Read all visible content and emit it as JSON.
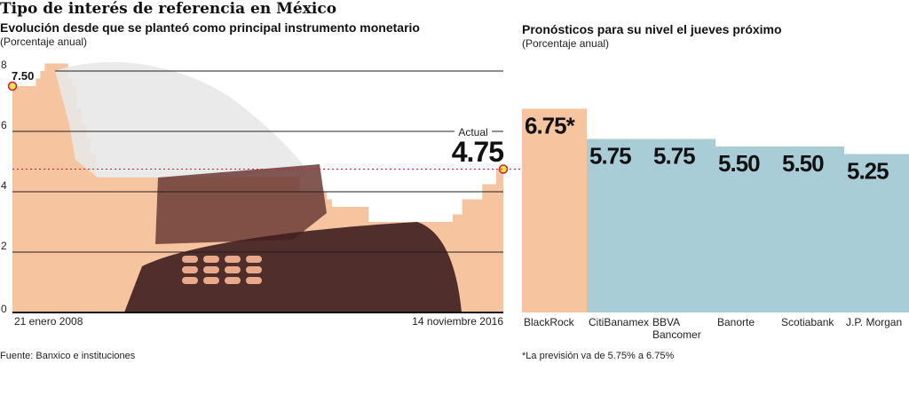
{
  "header": {
    "title": "Tipo de interés de referencia en México",
    "left_subtitle": "Evolución desde que se planteó como principal instrumento monetario",
    "left_unit": "(Porcentaje anual)",
    "right_subtitle": "Pronósticos para su nivel el jueves próximo",
    "right_unit": "(Porcentaje anual)"
  },
  "footer": {
    "source": "Fuente: Banxico e instituciones",
    "note": "*La previsión va de 5.75% a 6.75%"
  },
  "colors": {
    "history_fill": "#f7c4a0",
    "forecast_fill": "#a9cdd6",
    "blackrock_fill": "#f7c4a0",
    "reference_line": "#c8203c",
    "marker": "#f2e04a"
  },
  "chart_data": [
    {
      "type": "area",
      "title": "Evolución desde que se planteó como principal instrumento monetario",
      "ylabel": "Porcentaje anual",
      "ylim": [
        0,
        8
      ],
      "yticks": [
        "0",
        "2",
        "4",
        "6",
        "8"
      ],
      "xlabels": {
        "start": "21 enero 2008",
        "end": "14 noviembre 2016"
      },
      "xlim": [
        2008.05,
        2016.87
      ],
      "step_series": [
        [
          2008.05,
          7.5
        ],
        [
          2008.47,
          7.75
        ],
        [
          2008.55,
          8.0
        ],
        [
          2008.63,
          8.25
        ],
        [
          2009.05,
          7.75
        ],
        [
          2009.13,
          7.5
        ],
        [
          2009.21,
          6.75
        ],
        [
          2009.3,
          6.25
        ],
        [
          2009.38,
          5.75
        ],
        [
          2009.46,
          5.25
        ],
        [
          2009.55,
          4.5
        ],
        [
          2013.21,
          4.0
        ],
        [
          2013.7,
          3.75
        ],
        [
          2013.79,
          3.5
        ],
        [
          2014.45,
          3.0
        ],
        [
          2015.96,
          3.25
        ],
        [
          2016.13,
          3.75
        ],
        [
          2016.49,
          4.25
        ],
        [
          2016.74,
          4.75
        ]
      ],
      "start_label": "7.50",
      "current": {
        "label": "Actual",
        "value": "4.75"
      },
      "grid": true
    },
    {
      "type": "bar",
      "title": "Pronósticos para su nivel el jueves próximo",
      "categories": [
        "BlackRock",
        "CitiBanamex",
        "BBVA\nBancomer",
        "Banorte",
        "Scotiabank",
        "J.P. Morgan"
      ],
      "values": [
        6.75,
        5.75,
        5.75,
        5.5,
        5.5,
        5.25
      ],
      "value_labels": [
        "6.75*",
        "5.75",
        "5.75",
        "5.50",
        "5.50",
        "5.25"
      ],
      "ylim": [
        0,
        8
      ],
      "reference_value": 4.75
    }
  ]
}
